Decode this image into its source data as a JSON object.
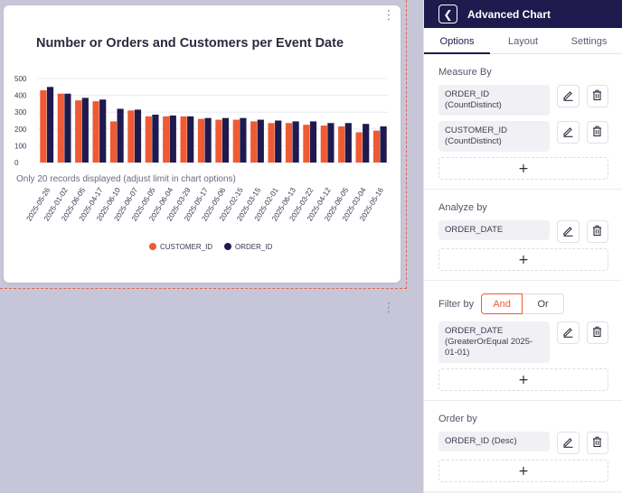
{
  "panel": {
    "title": "Advanced Chart",
    "tabs": [
      "Options",
      "Layout",
      "Settings"
    ],
    "active_tab": "Options",
    "measure_by": {
      "title": "Measure By",
      "items": [
        "ORDER_ID (CountDistinct)",
        "CUSTOMER_ID (CountDistinct)"
      ],
      "add": "+"
    },
    "analyze_by": {
      "title": "Analyze by",
      "items": [
        "ORDER_DATE"
      ],
      "add": "+"
    },
    "filter_by": {
      "title": "Filter by",
      "and_label": "And",
      "or_label": "Or",
      "items": [
        "ORDER_DATE (GreaterOrEqual 2025-01-01)"
      ],
      "add": "+"
    },
    "order_by": {
      "title": "Order by",
      "items": [
        "ORDER_ID (Desc)"
      ],
      "add": "+"
    }
  },
  "colors": {
    "customer": "#ef5a34",
    "order": "#1f1a4d",
    "header": "#1f1a4d",
    "accent": "#ef5a34"
  },
  "chart_note": "Only 20 records displayed (adjust limit in chart options)",
  "chart_data": {
    "type": "bar",
    "title": "Number or Orders and Customers per Event Date",
    "categories": [
      "2025-05-26",
      "2025-01-02",
      "2025-06-05",
      "2025-04-17",
      "2025-06-10",
      "2025-06-07",
      "2025-05-05",
      "2025-06-04",
      "2025-03-29",
      "2025-05-17",
      "2025-05-06",
      "2025-02-15",
      "2025-03-15",
      "2025-02-01",
      "2025-06-13",
      "2025-03-22",
      "2025-04-12",
      "2025-06-05",
      "2025-03-04",
      "2025-05-16"
    ],
    "series": [
      {
        "name": "CUSTOMER_ID",
        "values": [
          430,
          410,
          370,
          365,
          245,
          310,
          275,
          275,
          275,
          260,
          255,
          255,
          245,
          235,
          235,
          225,
          220,
          215,
          180,
          190
        ]
      },
      {
        "name": "ORDER_ID",
        "values": [
          450,
          410,
          385,
          375,
          320,
          315,
          285,
          280,
          275,
          265,
          265,
          265,
          255,
          250,
          245,
          245,
          235,
          235,
          230,
          215
        ]
      }
    ],
    "yticks": [
      "0",
      "100",
      "200",
      "300",
      "400",
      "500"
    ],
    "ylim": [
      0,
      500
    ],
    "grid": true,
    "legend": "bottom-center"
  }
}
